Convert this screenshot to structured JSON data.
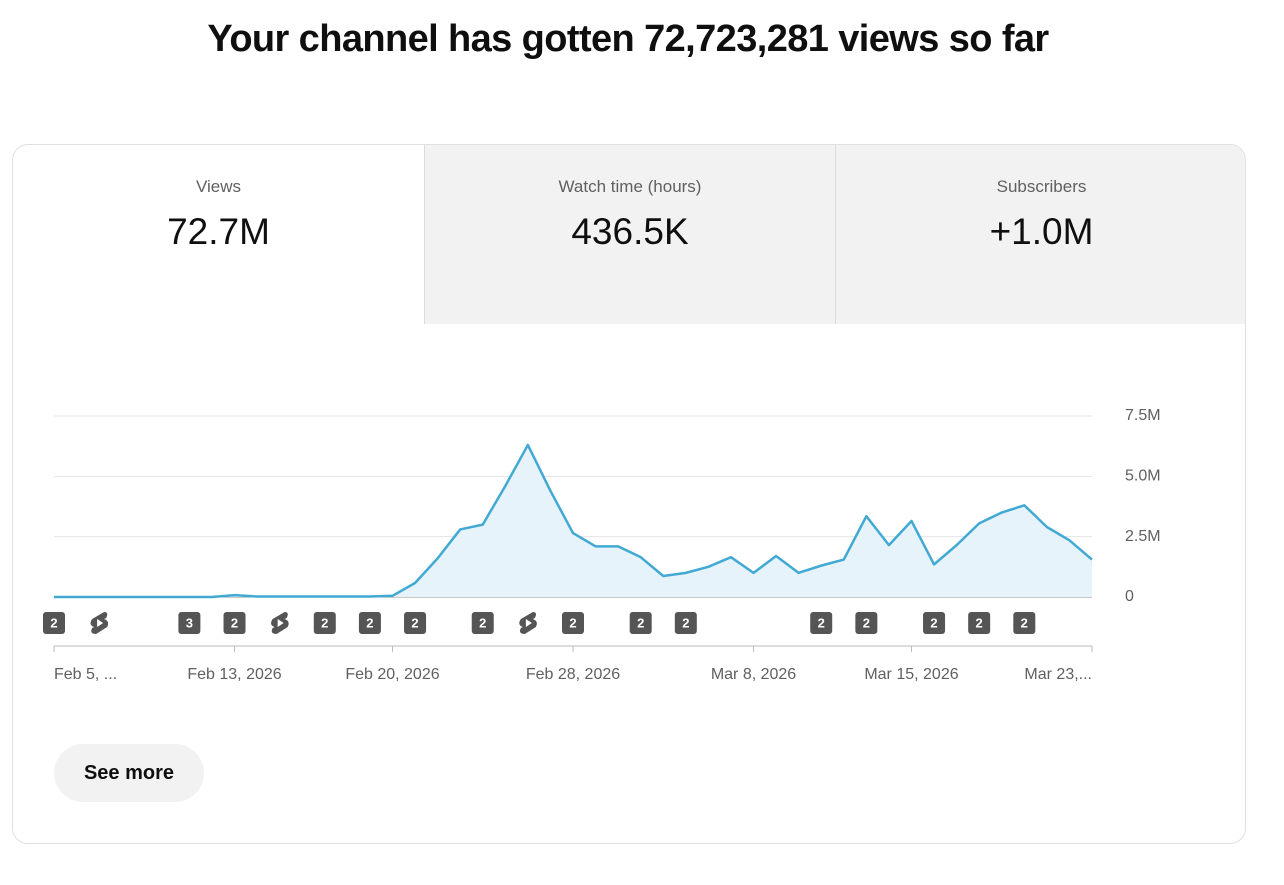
{
  "header": {
    "title": "Your channel has gotten 72,723,281 views so far"
  },
  "tabs": [
    {
      "label": "Views",
      "value": "72.7M"
    },
    {
      "label": "Watch time (hours)",
      "value": "436.5K"
    },
    {
      "label": "Subscribers",
      "value": "+1.0M"
    }
  ],
  "chart_data": {
    "type": "line",
    "categories": [
      "Feb 5, ...",
      null,
      null,
      null,
      null,
      null,
      null,
      null,
      "Feb 13, 2026",
      null,
      null,
      null,
      null,
      null,
      null,
      "Feb 20, 2026",
      null,
      null,
      null,
      null,
      null,
      null,
      null,
      "Feb 28, 2026",
      null,
      null,
      null,
      null,
      null,
      null,
      null,
      "Mar 8, 2026",
      null,
      null,
      null,
      null,
      null,
      null,
      "Mar 15, 2026",
      null,
      null,
      null,
      null,
      null,
      null,
      null,
      "Mar 23,..."
    ],
    "series": [
      {
        "name": "Views",
        "color": "#41a9d3",
        "values": [
          0,
          0,
          0,
          0,
          0,
          0,
          0,
          0,
          80000,
          20000,
          20000,
          20000,
          20000,
          20000,
          20000,
          50000,
          580000,
          1600000,
          2800000,
          3000000,
          4600000,
          6300000,
          4400000,
          2650000,
          2100000,
          2100000,
          1650000,
          870000,
          1000000,
          1250000,
          1650000,
          1000000,
          1700000,
          1000000,
          1300000,
          1550000,
          3350000,
          2150000,
          3150000,
          1350000,
          2150000,
          3050000,
          3500000,
          3800000,
          2900000,
          2350000,
          1550000
        ]
      }
    ],
    "ylim": [
      0,
      7500000
    ],
    "yticks": [
      0,
      {
        "value": 2500000,
        "label": "2.5M"
      },
      {
        "value": 5000000,
        "label": "5.0M"
      },
      {
        "value": 7500000,
        "label": "7.5M"
      }
    ],
    "grid": true,
    "video_markers": [
      "2",
      null,
      null,
      null,
      null,
      null,
      "3",
      null,
      "2",
      null,
      null,
      null,
      "2",
      null,
      "2",
      null,
      "2",
      null,
      null,
      "2",
      null,
      null,
      null,
      "2",
      null,
      null,
      "2",
      null,
      "2",
      null,
      null,
      null,
      null,
      null,
      "2",
      null,
      "2",
      null,
      null,
      "2",
      null,
      "2",
      null,
      "2",
      null,
      null,
      null
    ],
    "shorts_markers": [
      false,
      false,
      true,
      false,
      false,
      false,
      false,
      false,
      false,
      false,
      true,
      false,
      false,
      false,
      false,
      false,
      false,
      false,
      false,
      false,
      false,
      true,
      false,
      false,
      false,
      false,
      false,
      false,
      false,
      false,
      false,
      false,
      false,
      false,
      false,
      false,
      false,
      false,
      false,
      false,
      false,
      false,
      false,
      false,
      false,
      false,
      false
    ]
  },
  "button": {
    "label": "See more"
  }
}
